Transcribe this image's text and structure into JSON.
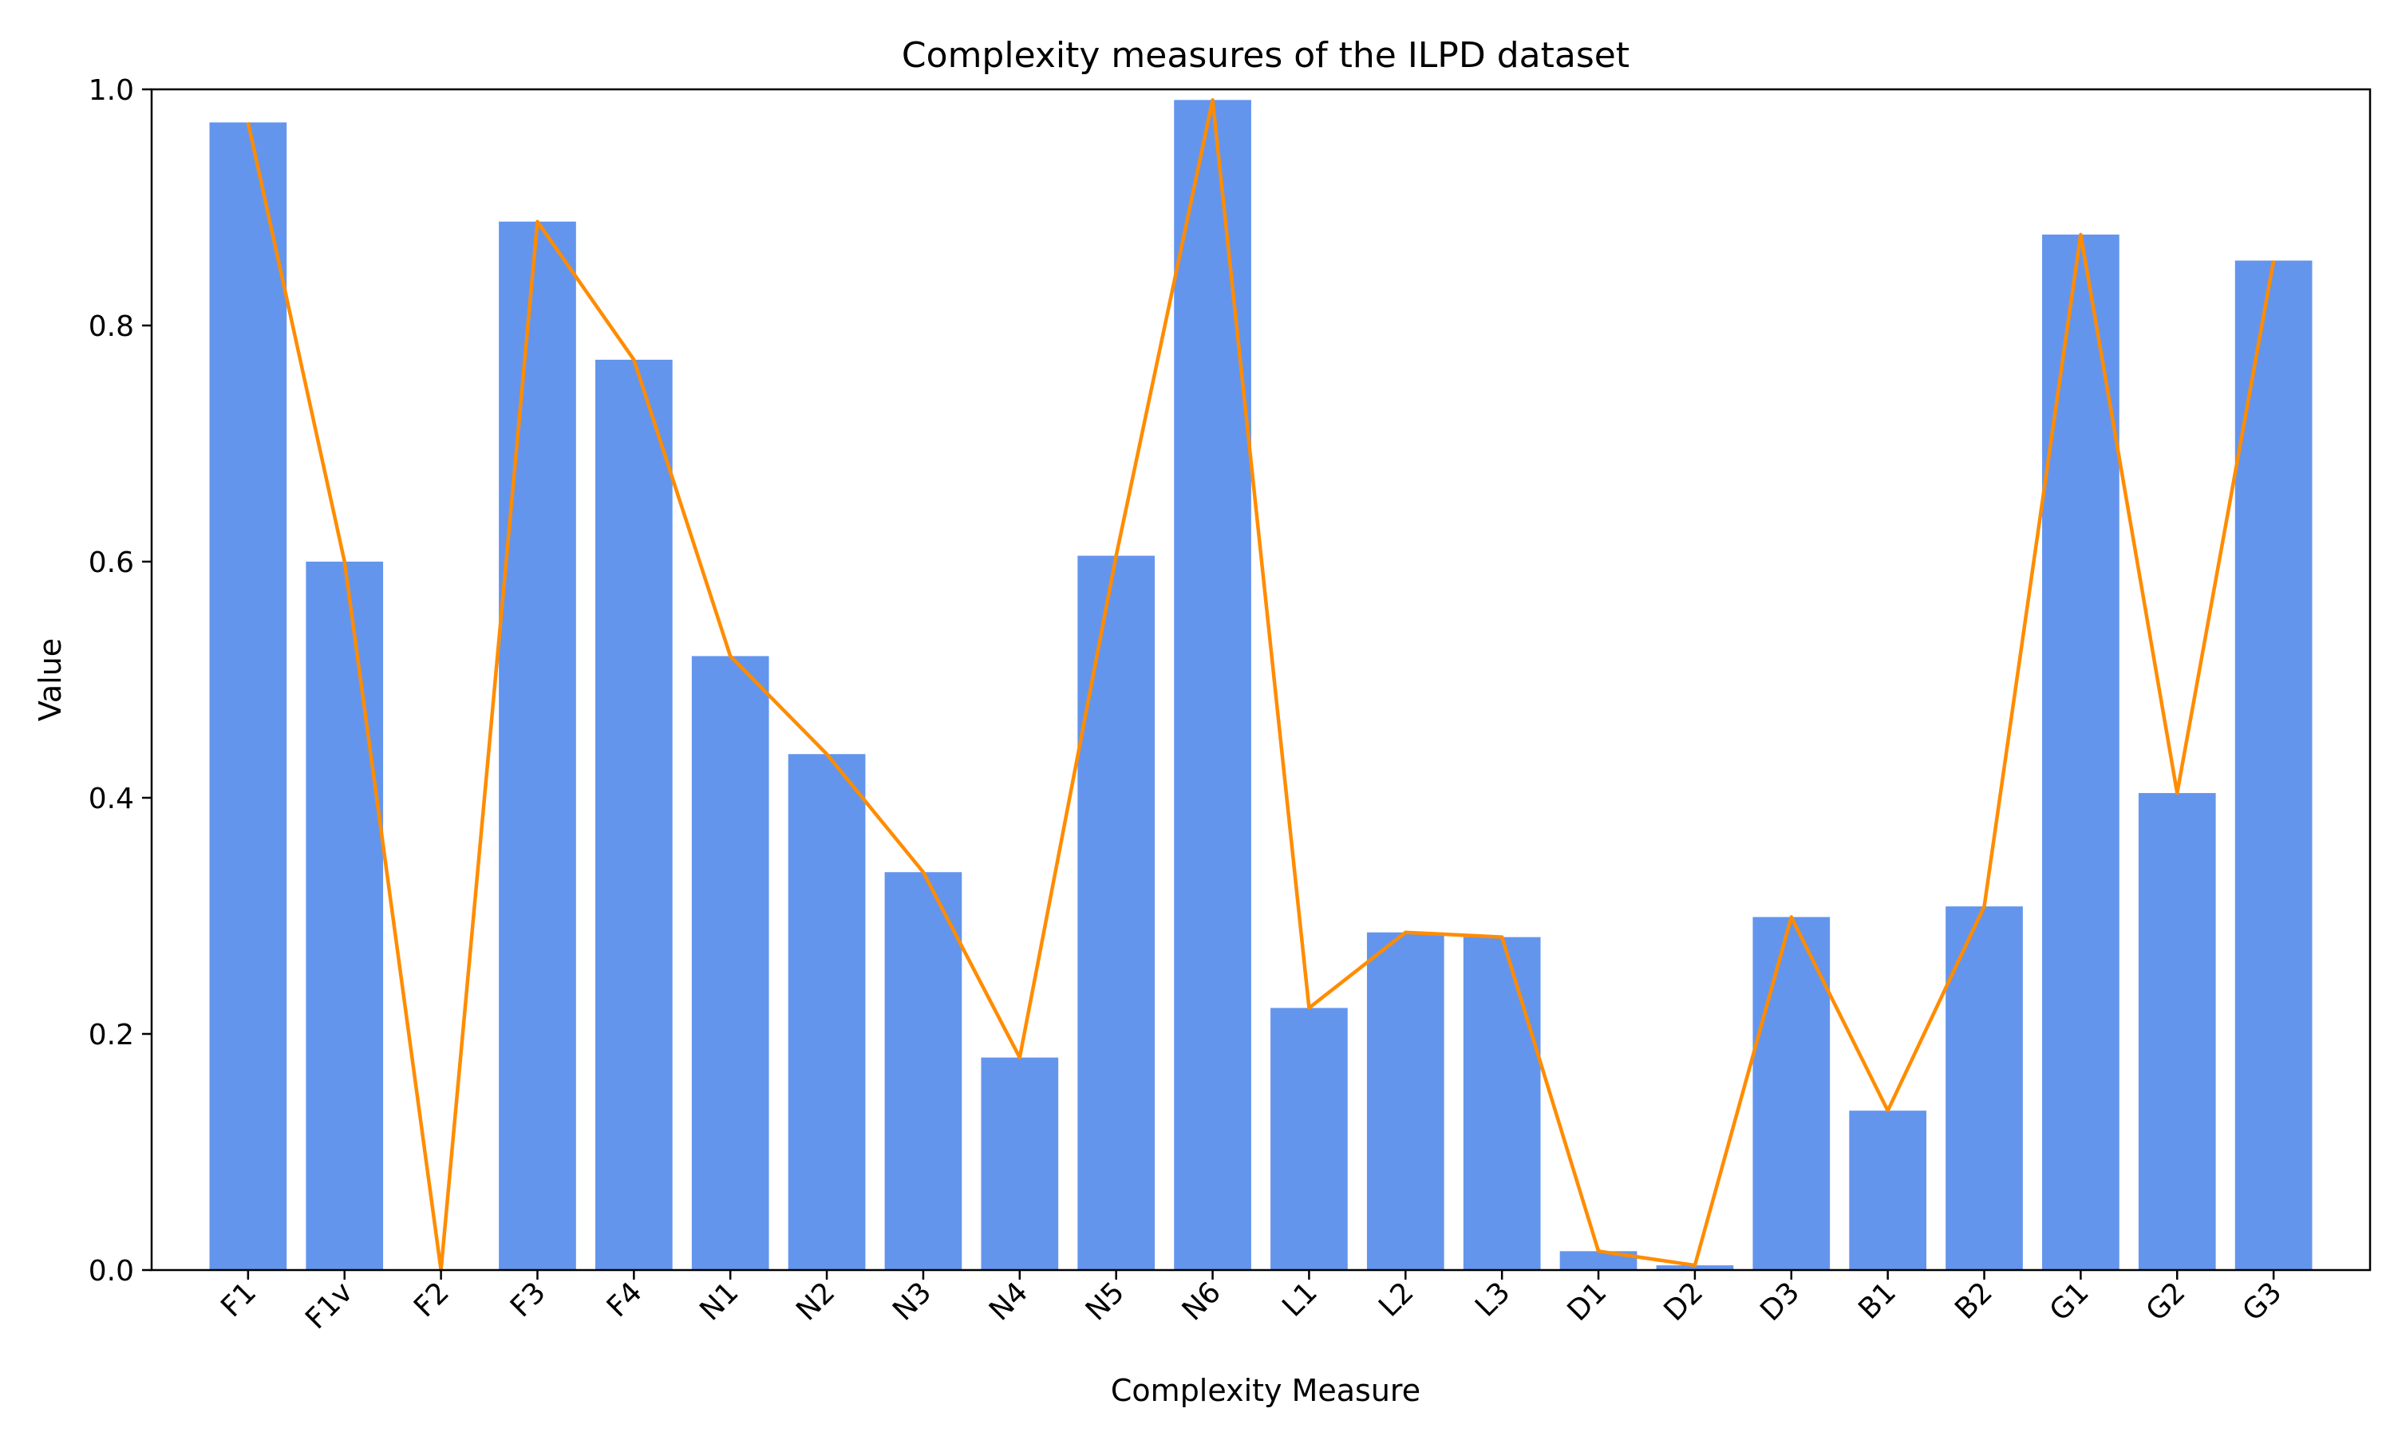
{
  "chart_data": {
    "type": "bar",
    "title": "Complexity measures of the ILPD dataset",
    "xlabel": "Complexity Measure",
    "ylabel": "Value",
    "ylim": [
      0,
      1.0
    ],
    "yticks": [
      "0.0",
      "0.2",
      "0.4",
      "0.6",
      "0.8",
      "1.0"
    ],
    "categories": [
      "F1",
      "F1v",
      "F2",
      "F3",
      "F4",
      "N1",
      "N2",
      "N3",
      "N4",
      "N5",
      "N6",
      "L1",
      "L2",
      "L3",
      "D1",
      "D2",
      "D3",
      "B1",
      "B2",
      "G1",
      "G2",
      "G3"
    ],
    "values": [
      0.972,
      0.6,
      0.0,
      0.888,
      0.771,
      0.52,
      0.437,
      0.337,
      0.18,
      0.605,
      0.991,
      0.222,
      0.286,
      0.282,
      0.016,
      0.004,
      0.299,
      0.135,
      0.308,
      0.877,
      0.404,
      0.855
    ],
    "grid": false,
    "bar_color": "#6495ED",
    "line_color": "#FF8C00"
  }
}
